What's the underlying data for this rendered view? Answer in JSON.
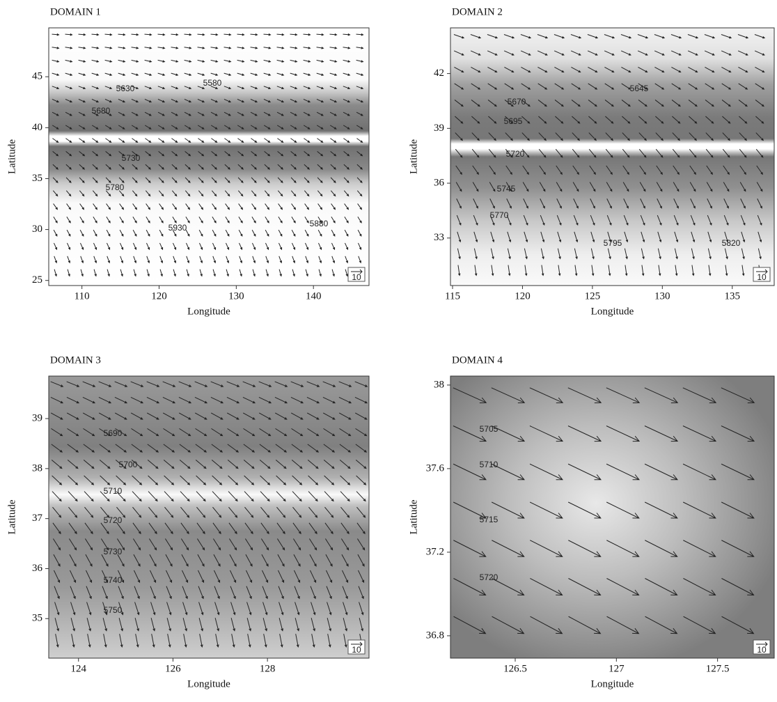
{
  "panels": [
    {
      "title": "DOMAIN 1",
      "xlabel": "Longitude",
      "ylabel": "Latitude",
      "xlim": [
        105.7,
        147.2
      ],
      "ylim": [
        24.5,
        49.8
      ],
      "xticks": [
        110,
        120,
        130,
        140
      ],
      "yticks": [
        25,
        30,
        35,
        40,
        45
      ],
      "contour_labels": [
        5630,
        5580,
        5680,
        5730,
        5780,
        5930,
        5880
      ],
      "reference_vector": 10
    },
    {
      "title": "DOMAIN 2",
      "xlabel": "Longitude",
      "ylabel": "Latitude",
      "xlim": [
        114.85,
        138.0
      ],
      "ylim": [
        30.4,
        44.5
      ],
      "xticks": [
        115,
        120,
        125,
        130,
        135
      ],
      "yticks": [
        33,
        36,
        39,
        42
      ],
      "contour_labels": [
        5645,
        5670,
        5695,
        5720,
        5745,
        5770,
        5795,
        5820
      ],
      "reference_vector": 10
    },
    {
      "title": "DOMAIN 3",
      "xlabel": "Longitude",
      "ylabel": "Latitude",
      "xlim": [
        123.37,
        130.15
      ],
      "ylim": [
        34.21,
        39.85
      ],
      "xticks": [
        124,
        126,
        128
      ],
      "yticks": [
        35,
        36,
        37,
        38,
        39
      ],
      "contour_labels": [
        5690,
        5700,
        5710,
        5720,
        5730,
        5740,
        5750
      ],
      "reference_vector": 10
    },
    {
      "title": "DOMAIN 4",
      "xlabel": "Longitude",
      "ylabel": "Latitude",
      "xlim": [
        126.18,
        127.78
      ],
      "ylim": [
        36.693,
        38.043
      ],
      "xticks": [
        126.5,
        127,
        127.5
      ],
      "yticks": [
        36.8,
        37.2,
        37.6,
        38
      ],
      "contour_labels": [
        5705,
        5710,
        5715,
        5720
      ],
      "reference_vector": 10
    }
  ]
}
